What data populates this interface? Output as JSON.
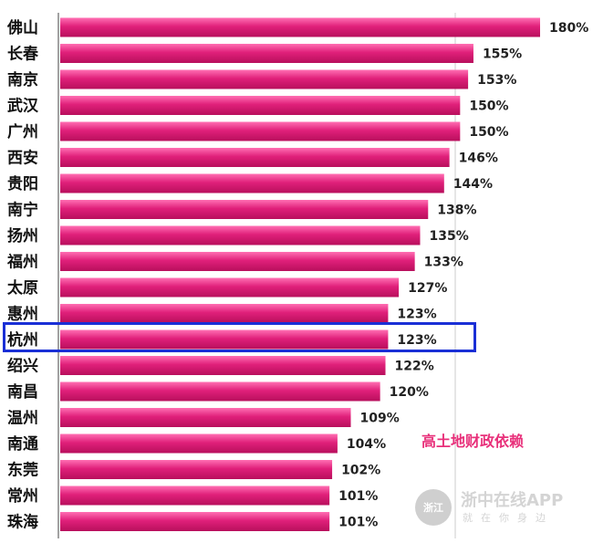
{
  "chart_data": {
    "type": "bar",
    "orientation": "horizontal",
    "categories": [
      "佛山",
      "长春",
      "南京",
      "武汉",
      "广州",
      "西安",
      "贵阳",
      "南宁",
      "扬州",
      "福州",
      "太原",
      "惠州",
      "杭州",
      "绍兴",
      "南昌",
      "温州",
      "南通",
      "东莞",
      "常州",
      "珠海"
    ],
    "values": [
      180,
      155,
      153,
      150,
      150,
      146,
      144,
      138,
      135,
      133,
      127,
      123,
      123,
      122,
      120,
      109,
      104,
      102,
      101,
      101
    ],
    "value_labels": [
      "180%",
      "155%",
      "153%",
      "150%",
      "150%",
      "146%",
      "144%",
      "138%",
      "135%",
      "133%",
      "127%",
      "123%",
      "123%",
      "122%",
      "120%",
      "109%",
      "104%",
      "102%",
      "101%",
      "101%"
    ],
    "highlighted_category": "杭州",
    "annotation": "高土地财政依赖",
    "bar_color": "#e0207a",
    "highlight_color": "#1a2fd6",
    "annotation_color": "#e8307a",
    "grid": false
  },
  "watermark": {
    "logo_text": "浙江",
    "name": "浙中在线APP",
    "slogan": "就在你身边"
  }
}
